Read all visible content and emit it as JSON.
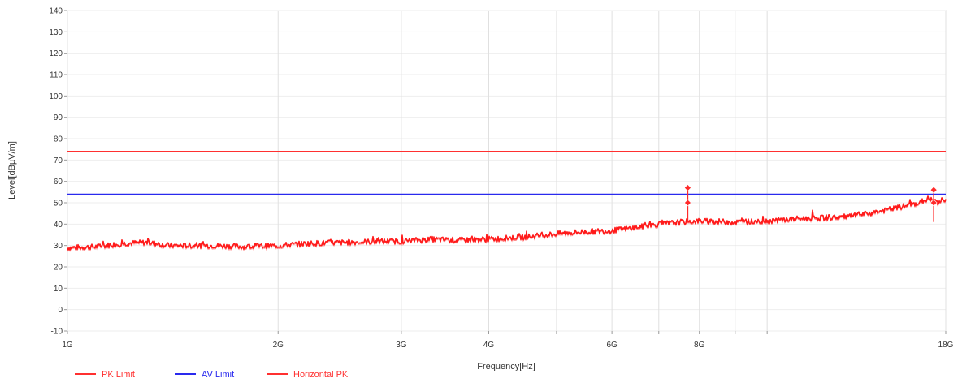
{
  "chart_data": {
    "type": "line",
    "xlabel": "Frequency[Hz]",
    "ylabel": "Level[dBµV/m]",
    "x_scale": "log",
    "xlim_hz": [
      1000000000,
      18000000000
    ],
    "ylim": [
      -10,
      140
    ],
    "y_ticks": [
      -10,
      0,
      10,
      20,
      30,
      40,
      50,
      60,
      70,
      80,
      90,
      100,
      110,
      120,
      130,
      140
    ],
    "y_tick_labels": [
      "-10",
      "0",
      "10",
      "20",
      "30",
      "40",
      "50",
      "60",
      "70",
      "80",
      "90",
      "100",
      "110",
      "120",
      "130",
      "140"
    ],
    "x_ticks": [
      {
        "hz": 1000000000,
        "label": "1G"
      },
      {
        "hz": 2000000000,
        "label": "2G"
      },
      {
        "hz": 3000000000,
        "label": "3G"
      },
      {
        "hz": 4000000000,
        "label": "4G"
      },
      {
        "hz": 6000000000,
        "label": "6G"
      },
      {
        "hz": 8000000000,
        "label": "8G"
      },
      {
        "hz": 18000000000,
        "label": "18G"
      }
    ],
    "x_minor_grid_hz": [
      5000000000,
      7000000000,
      9000000000,
      10000000000
    ],
    "grid": true,
    "legend_position": "bottom-left",
    "colors": {
      "pk_limit": "#ff3030",
      "av_limit": "#2a2aee",
      "trace": "#ff1a1a",
      "marker": "#ff2a2a"
    },
    "series": [
      {
        "name": "PK Limit",
        "kind": "limit",
        "color": "#ff3030",
        "x_hz": [
          1000000000,
          18000000000
        ],
        "y": [
          74,
          74
        ]
      },
      {
        "name": "AV Limit",
        "kind": "limit",
        "color": "#2a2aee",
        "x_hz": [
          1000000000,
          18000000000
        ],
        "y": [
          54,
          54
        ]
      },
      {
        "name": "Horizontal PK",
        "kind": "trace",
        "color": "#ff1a1a",
        "x_hz": [
          1000000000,
          1100000000,
          1200000000,
          1300000000,
          1400000000,
          1500000000,
          1600000000,
          1800000000,
          2000000000,
          2200000000,
          2500000000,
          2800000000,
          3000000000,
          3300000000,
          3600000000,
          4000000000,
          4500000000,
          5000000000,
          5500000000,
          6000000000,
          6500000000,
          7000000000,
          7500000000,
          8000000000,
          9000000000,
          10000000000,
          11000000000,
          12000000000,
          13000000000,
          14000000000,
          15000000000,
          16000000000,
          16500000000,
          17000000000,
          17500000000,
          18000000000
        ],
        "y": [
          29,
          29.5,
          31,
          31.5,
          30,
          30,
          30,
          29.5,
          30,
          31,
          31.5,
          32,
          32,
          33,
          32.5,
          33,
          34,
          35.5,
          36.5,
          37,
          38.5,
          40,
          41,
          41.5,
          41,
          41.5,
          42.5,
          43,
          43.5,
          45,
          47,
          49,
          50,
          52,
          50,
          52
        ]
      }
    ],
    "markers": [
      {
        "x_hz": 7700000000,
        "y": 57
      },
      {
        "x_hz": 7700000000,
        "y": 50
      },
      {
        "x_hz": 17300000000,
        "y": 56
      },
      {
        "x_hz": 17300000000,
        "y": 50
      }
    ]
  }
}
